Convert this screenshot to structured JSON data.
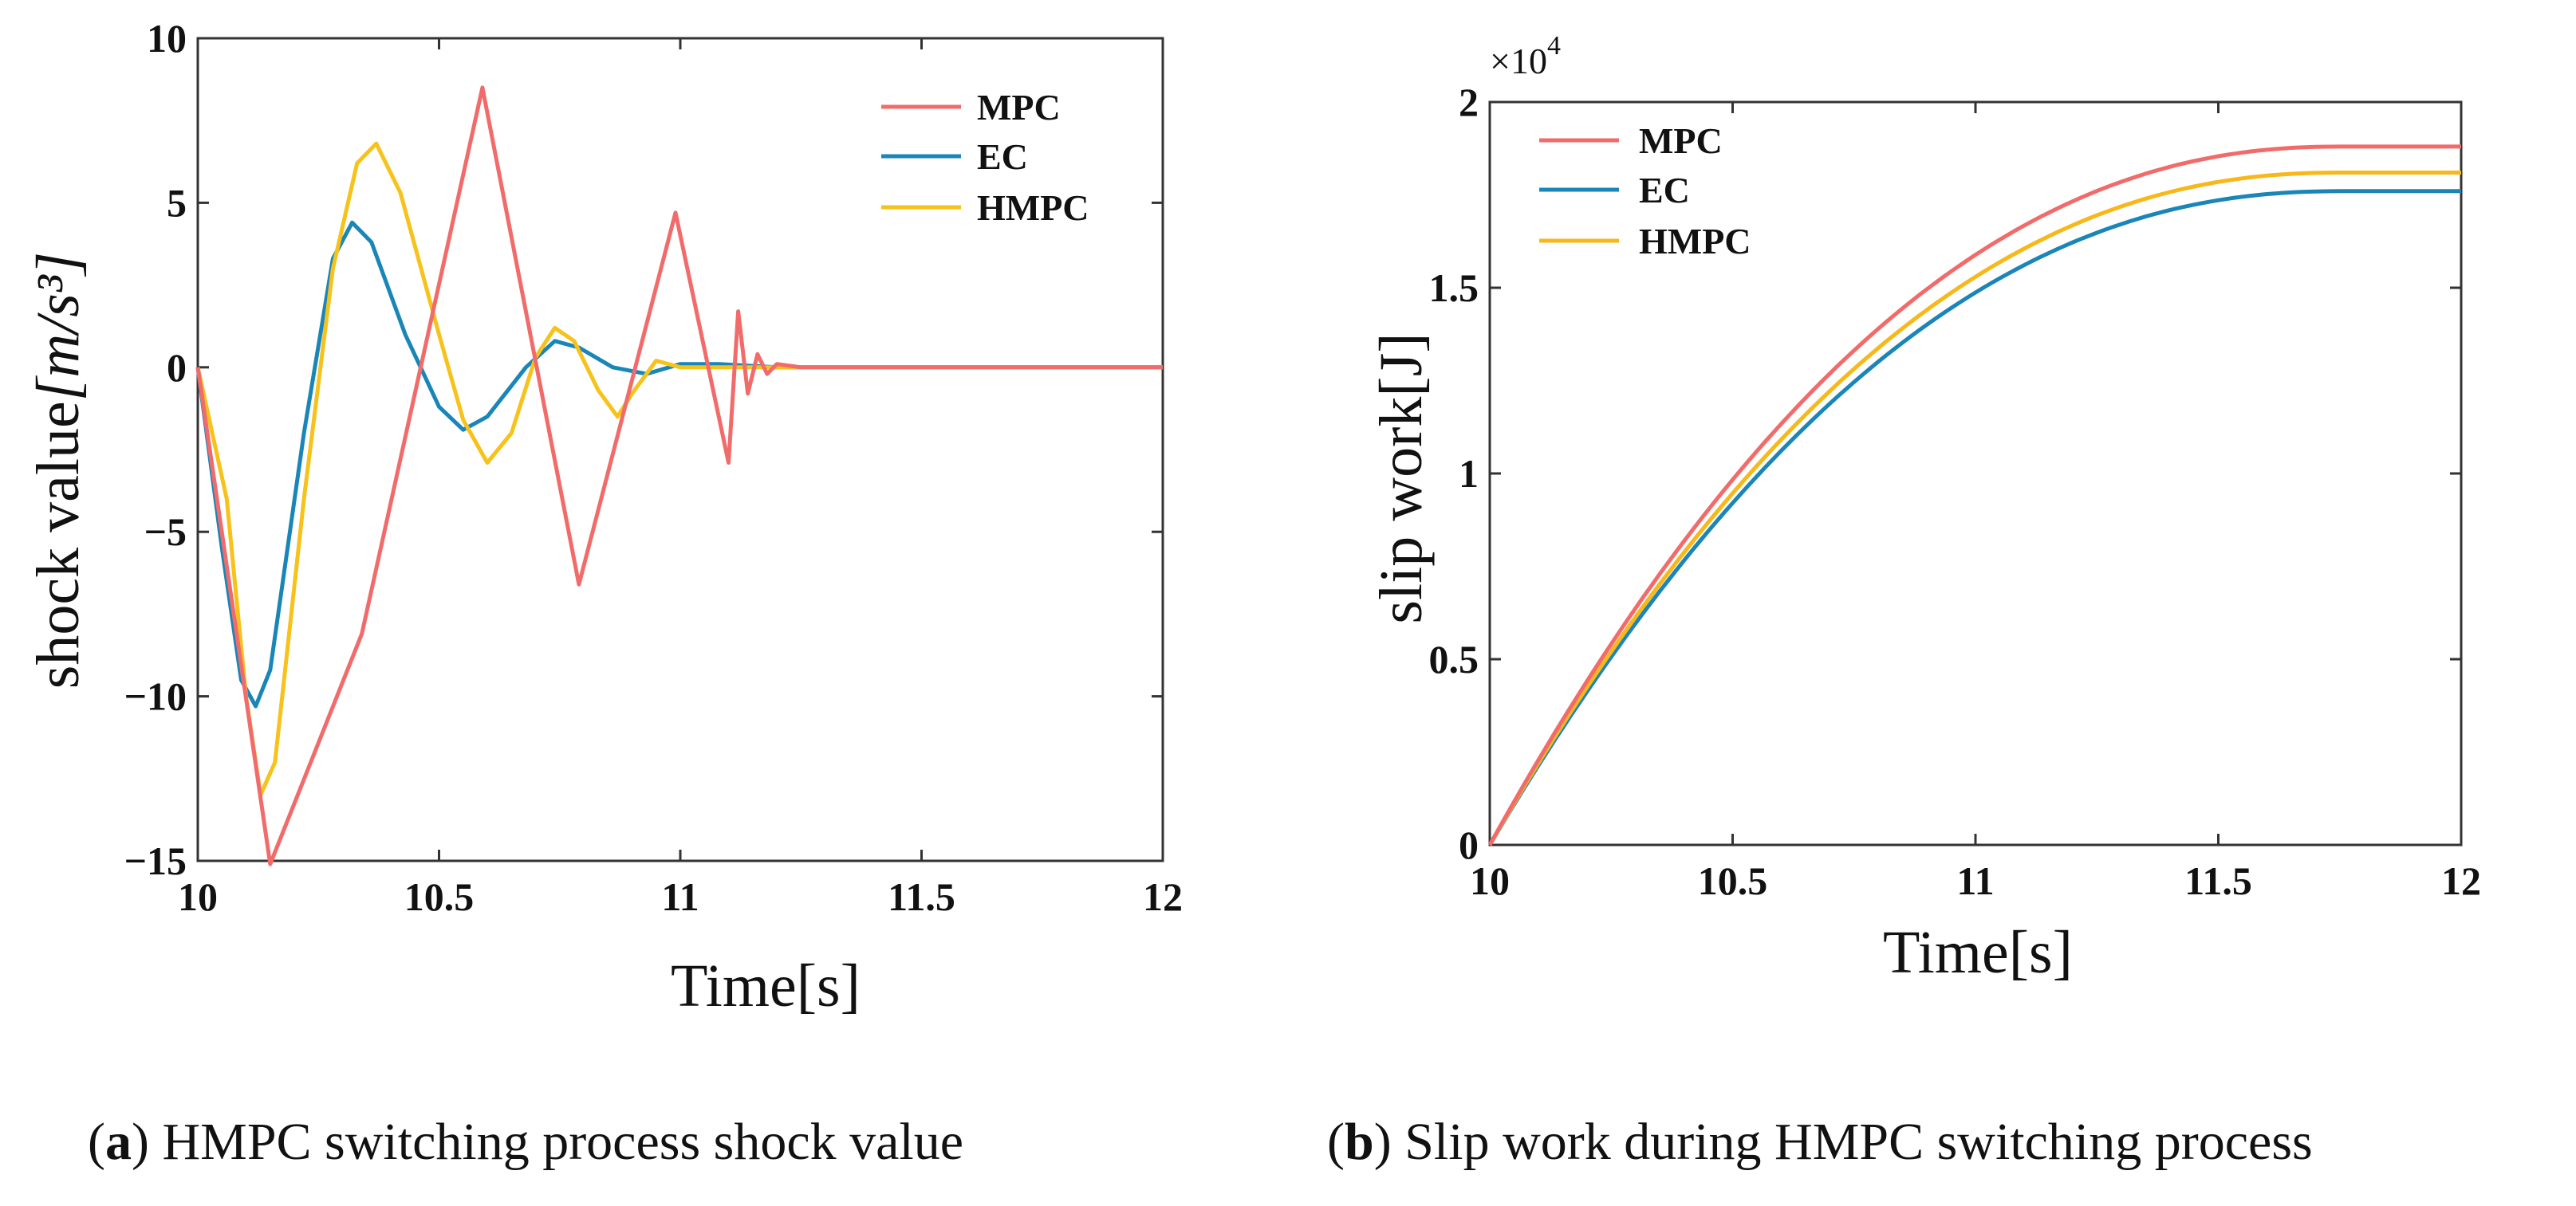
{
  "chart_data": [
    {
      "type": "line",
      "title": "",
      "xlabel": "Time[s]",
      "ylabel_prefix": "shock value",
      "ylabel_unit": "[m/s³]",
      "xlim": [
        10,
        12
      ],
      "ylim": [
        -15,
        10
      ],
      "xticks": [
        10,
        10.5,
        11,
        11.5,
        12
      ],
      "xtick_labels": [
        "10",
        "10.5",
        "11",
        "11.5",
        "12"
      ],
      "yticks": [
        -15,
        -10,
        -5,
        0,
        5,
        10
      ],
      "ytick_labels": [
        "−15",
        "−10",
        "−5",
        "0",
        "5",
        "10"
      ],
      "legend_position": "top-right",
      "series": [
        {
          "name": "MPC",
          "color": "#f26b6b",
          "points": [
            [
              10,
              0
            ],
            [
              10.15,
              -15.1
            ],
            [
              10.34,
              -8.1
            ],
            [
              10.59,
              8.5
            ],
            [
              10.79,
              -6.6
            ],
            [
              10.99,
              4.7
            ],
            [
              11.1,
              -2.9
            ],
            [
              11.12,
              1.7
            ],
            [
              11.14,
              -0.8
            ],
            [
              11.16,
              0.4
            ],
            [
              11.18,
              -0.2
            ],
            [
              11.2,
              0.1
            ],
            [
              11.25,
              0
            ],
            [
              12,
              0
            ]
          ]
        },
        {
          "name": "EC",
          "color": "#1a86b8",
          "points": [
            [
              10,
              0
            ],
            [
              10.05,
              -5.5
            ],
            [
              10.09,
              -9.5
            ],
            [
              10.12,
              -10.3
            ],
            [
              10.15,
              -9.2
            ],
            [
              10.22,
              -2
            ],
            [
              10.28,
              3.3
            ],
            [
              10.32,
              4.4
            ],
            [
              10.36,
              3.8
            ],
            [
              10.43,
              1
            ],
            [
              10.5,
              -1.2
            ],
            [
              10.55,
              -1.9
            ],
            [
              10.6,
              -1.5
            ],
            [
              10.68,
              0
            ],
            [
              10.74,
              0.8
            ],
            [
              10.79,
              0.6
            ],
            [
              10.86,
              0
            ],
            [
              10.93,
              -0.2
            ],
            [
              11,
              0.1
            ],
            [
              11.08,
              0.1
            ],
            [
              11.2,
              0
            ],
            [
              12,
              0
            ]
          ]
        },
        {
          "name": "HMPC",
          "color": "#f7c21a",
          "points": [
            [
              10,
              0
            ],
            [
              10.06,
              -4
            ],
            [
              10.1,
              -10
            ],
            [
              10.13,
              -13
            ],
            [
              10.16,
              -12
            ],
            [
              10.22,
              -4
            ],
            [
              10.28,
              3
            ],
            [
              10.33,
              6.2
            ],
            [
              10.37,
              6.8
            ],
            [
              10.42,
              5.3
            ],
            [
              10.5,
              1
            ],
            [
              10.55,
              -1.6
            ],
            [
              10.6,
              -2.9
            ],
            [
              10.65,
              -2
            ],
            [
              10.7,
              0.3
            ],
            [
              10.74,
              1.2
            ],
            [
              10.78,
              0.8
            ],
            [
              10.83,
              -0.7
            ],
            [
              10.87,
              -1.5
            ],
            [
              10.9,
              -0.8
            ],
            [
              10.95,
              0.2
            ],
            [
              11,
              0
            ],
            [
              11.3,
              0
            ],
            [
              12,
              0
            ]
          ]
        }
      ]
    },
    {
      "type": "line",
      "title": "",
      "xlabel": "Time[s]",
      "ylabel": "slip work[J]",
      "multiplier": "×10",
      "multiplier_exp": "4",
      "xlim": [
        10,
        12
      ],
      "ylim": [
        0,
        2
      ],
      "xticks": [
        10,
        10.5,
        11,
        11.5,
        12
      ],
      "xtick_labels": [
        "10",
        "10.5",
        "11",
        "11.5",
        "12"
      ],
      "yticks": [
        0,
        0.5,
        1,
        1.5,
        2
      ],
      "ytick_labels": [
        "0",
        "0.5",
        "1",
        "1.5",
        "2"
      ],
      "legend_position": "top-left",
      "series": [
        {
          "name": "MPC",
          "color": "#f26b6b",
          "final": 1.88
        },
        {
          "name": "EC",
          "color": "#1a86b8",
          "final": 1.76
        },
        {
          "name": "HMPC",
          "color": "#f7b81a",
          "final": 1.81
        }
      ]
    }
  ],
  "captions": {
    "a_letter": "a",
    "a_text": "HMPC switching process shock value",
    "b_letter": "b",
    "b_text": "Slip work during HMPC switching process"
  }
}
